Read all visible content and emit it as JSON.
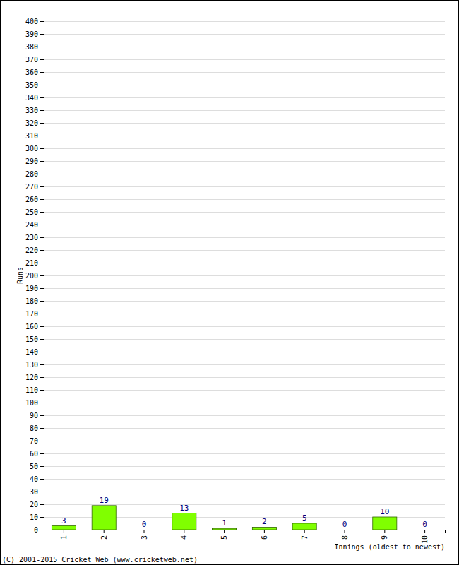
{
  "chart_data": {
    "type": "bar",
    "categories": [
      "1",
      "2",
      "3",
      "4",
      "5",
      "6",
      "7",
      "8",
      "9",
      "10"
    ],
    "values": [
      3,
      19,
      0,
      13,
      1,
      2,
      5,
      0,
      10,
      0
    ],
    "color": "#80ff00",
    "x_label": "Innings (oldest to newest)",
    "y_label": "Runs",
    "annotations": [
      "(C) 2001-2015 Cricket Web (www.cricketweb.net)"
    ],
    "ylim": [
      0,
      400
    ],
    "yticks": [
      0,
      10,
      20,
      30,
      40,
      50,
      60,
      70,
      80,
      90,
      100,
      110,
      120,
      130,
      140,
      150,
      160,
      170,
      180,
      190,
      200,
      210,
      220,
      230,
      240,
      250,
      260,
      270,
      280,
      290,
      300,
      310,
      320,
      330,
      340,
      350,
      360,
      370,
      380,
      390,
      400
    ],
    "grid": true,
    "data_labels": true
  }
}
